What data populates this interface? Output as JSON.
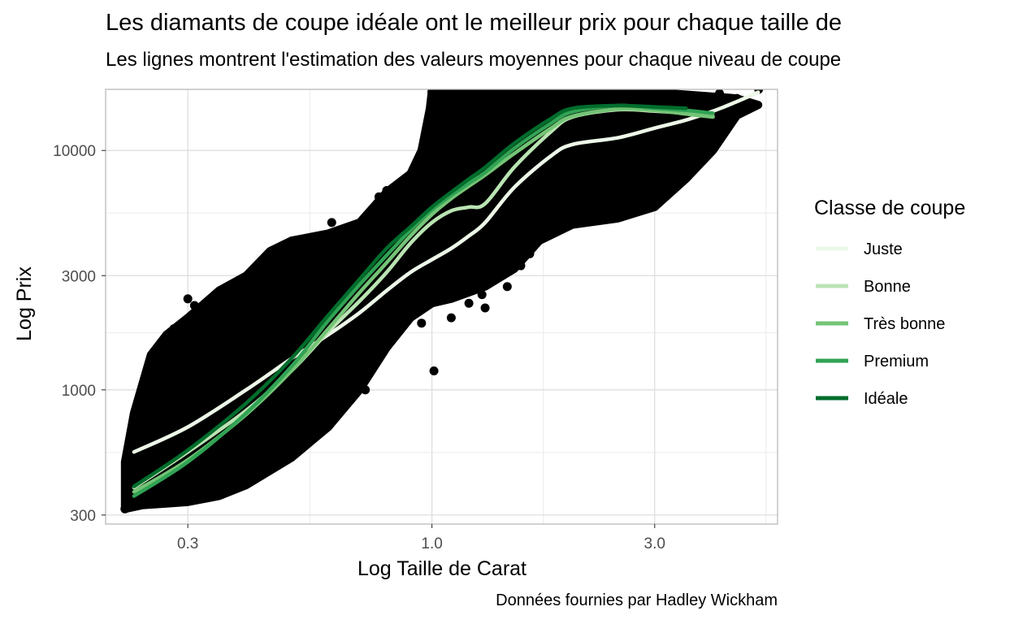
{
  "title": "Les diamants de coupe idéale ont le meilleur prix pour chaque taille de",
  "subtitle": "Les lignes montrent l'estimation des valeurs moyennes pour chaque niveau de coupe",
  "caption": "Données fournies par Hadley Wickham",
  "chart_data": {
    "type": "scatter",
    "xlabel": "Log Taille de Carat",
    "ylabel": "Log Prix",
    "x_scale": "log10",
    "y_scale": "log10",
    "xlim": [
      0.2,
      5.5
    ],
    "ylim": [
      275,
      18000
    ],
    "x_ticks": [
      0.3,
      1.0,
      3.0
    ],
    "x_tick_labels": [
      "0.3",
      "1.0",
      "3.0"
    ],
    "y_ticks": [
      300,
      1000,
      3000,
      10000
    ],
    "y_tick_labels": [
      "300",
      "1000",
      "3000",
      "10000"
    ],
    "grid": true,
    "legend_title": "Classe de coupe",
    "legend_position": "right",
    "points_color": "#000000",
    "scatter_outline": [
      [
        0.22,
        318
      ],
      [
        0.24,
        330
      ],
      [
        0.27,
        335
      ],
      [
        0.3,
        340
      ],
      [
        0.35,
        360
      ],
      [
        0.4,
        400
      ],
      [
        0.5,
        520
      ],
      [
        0.6,
        700
      ],
      [
        0.7,
        1000
      ],
      [
        0.8,
        1500
      ],
      [
        0.9,
        2000
      ],
      [
        1.0,
        2300
      ],
      [
        1.1,
        2400
      ],
      [
        1.3,
        2700
      ],
      [
        1.5,
        3200
      ],
      [
        1.7,
        4200
      ],
      [
        2.0,
        4900
      ],
      [
        2.5,
        5200
      ],
      [
        3.0,
        5800
      ],
      [
        3.5,
        7600
      ],
      [
        4.0,
        10000
      ],
      [
        4.5,
        14000
      ],
      [
        5.0,
        15500
      ],
      [
        4.5,
        16500
      ],
      [
        4.0,
        16800
      ],
      [
        3.0,
        17500
      ],
      [
        2.0,
        17800
      ],
      [
        1.5,
        17800
      ],
      [
        1.0,
        17800
      ],
      [
        0.99,
        15000
      ],
      [
        0.95,
        10000
      ],
      [
        0.9,
        8000
      ],
      [
        0.8,
        6700
      ],
      [
        0.7,
        5000
      ],
      [
        0.6,
        4500
      ],
      [
        0.5,
        4200
      ],
      [
        0.45,
        3800
      ],
      [
        0.4,
        3000
      ],
      [
        0.35,
        2600
      ],
      [
        0.3,
        2000
      ],
      [
        0.27,
        1700
      ],
      [
        0.25,
        1400
      ],
      [
        0.23,
        800
      ],
      [
        0.22,
        500
      ]
    ],
    "scatter_points": [
      {
        "x": 0.22,
        "y": 318
      },
      {
        "x": 0.23,
        "y": 350
      },
      {
        "x": 0.26,
        "y": 1000
      },
      {
        "x": 0.25,
        "y": 930
      },
      {
        "x": 0.3,
        "y": 2400
      },
      {
        "x": 0.31,
        "y": 2250
      },
      {
        "x": 0.35,
        "y": 2100
      },
      {
        "x": 0.41,
        "y": 3100
      },
      {
        "x": 0.43,
        "y": 3300
      },
      {
        "x": 0.46,
        "y": 3500
      },
      {
        "x": 0.48,
        "y": 2700
      },
      {
        "x": 0.61,
        "y": 5000
      },
      {
        "x": 0.77,
        "y": 6400
      },
      {
        "x": 0.8,
        "y": 6800
      },
      {
        "x": 0.82,
        "y": 6100
      },
      {
        "x": 0.92,
        "y": 7000
      },
      {
        "x": 0.94,
        "y": 8000
      },
      {
        "x": 0.75,
        "y": 5600
      },
      {
        "x": 0.52,
        "y": 1000
      },
      {
        "x": 0.57,
        "y": 1300
      },
      {
        "x": 0.62,
        "y": 1050
      },
      {
        "x": 0.68,
        "y": 1350
      },
      {
        "x": 0.72,
        "y": 1000
      },
      {
        "x": 0.76,
        "y": 1500
      },
      {
        "x": 0.85,
        "y": 1800
      },
      {
        "x": 0.95,
        "y": 1900
      },
      {
        "x": 1.01,
        "y": 1200
      },
      {
        "x": 1.1,
        "y": 2000
      },
      {
        "x": 1.2,
        "y": 2300
      },
      {
        "x": 1.28,
        "y": 2500
      },
      {
        "x": 1.45,
        "y": 2700
      },
      {
        "x": 1.55,
        "y": 3300
      },
      {
        "x": 1.62,
        "y": 3700
      },
      {
        "x": 1.75,
        "y": 4700
      },
      {
        "x": 1.9,
        "y": 5000
      },
      {
        "x": 2.05,
        "y": 5600
      },
      {
        "x": 2.2,
        "y": 5900
      },
      {
        "x": 2.3,
        "y": 6400
      },
      {
        "x": 2.5,
        "y": 7600
      },
      {
        "x": 2.75,
        "y": 10000
      },
      {
        "x": 2.95,
        "y": 6000
      },
      {
        "x": 3.01,
        "y": 8500
      },
      {
        "x": 3.0,
        "y": 9700
      },
      {
        "x": 3.02,
        "y": 11800
      },
      {
        "x": 3.1,
        "y": 10600
      },
      {
        "x": 3.35,
        "y": 16600
      },
      {
        "x": 3.5,
        "y": 15000
      },
      {
        "x": 3.65,
        "y": 16300
      },
      {
        "x": 4.01,
        "y": 15200
      },
      {
        "x": 4.13,
        "y": 17300
      },
      {
        "x": 4.5,
        "y": 16500
      },
      {
        "x": 5.01,
        "y": 18000
      },
      {
        "x": 1.0,
        "y": 17600
      },
      {
        "x": 1.5,
        "y": 17800
      },
      {
        "x": 2.0,
        "y": 17700
      },
      {
        "x": 0.35,
        "y": 2000
      },
      {
        "x": 0.28,
        "y": 1800
      },
      {
        "x": 0.9,
        "y": 4200
      },
      {
        "x": 1.05,
        "y": 3000
      },
      {
        "x": 1.3,
        "y": 2200
      }
    ],
    "series": [
      {
        "name": "Juste",
        "color": "#edf8e9",
        "x": [
          0.23,
          0.3,
          0.4,
          0.5,
          0.6,
          0.7,
          0.8,
          0.9,
          1.0,
          1.1,
          1.2,
          1.3,
          1.5,
          1.8,
          2.0,
          2.5,
          3.0,
          3.5,
          4.0,
          4.5,
          5.0
        ],
        "y": [
          550,
          700,
          1000,
          1350,
          1700,
          2100,
          2600,
          3100,
          3500,
          3900,
          4400,
          5000,
          7000,
          9500,
          10600,
          11300,
          12400,
          13400,
          14600,
          16000,
          17500
        ]
      },
      {
        "name": "Bonne",
        "color": "#bae4b3",
        "x": [
          0.23,
          0.3,
          0.4,
          0.5,
          0.6,
          0.7,
          0.8,
          0.9,
          1.0,
          1.1,
          1.2,
          1.3,
          1.5,
          1.8,
          2.0,
          2.5,
          3.0,
          3.5,
          4.0
        ],
        "y": [
          390,
          550,
          820,
          1200,
          1750,
          2350,
          3100,
          4100,
          5000,
          5600,
          5800,
          6000,
          8500,
          12000,
          13800,
          14800,
          14600,
          14300,
          13900
        ]
      },
      {
        "name": "Très bonne",
        "color": "#74c476",
        "x": [
          0.23,
          0.3,
          0.4,
          0.5,
          0.6,
          0.7,
          0.8,
          0.9,
          1.0,
          1.1,
          1.2,
          1.3,
          1.5,
          1.8,
          2.0,
          2.5,
          3.0,
          3.5,
          4.0
        ],
        "y": [
          375,
          510,
          790,
          1200,
          1800,
          2550,
          3400,
          4400,
          5400,
          6300,
          7100,
          7900,
          9700,
          12400,
          13900,
          14900,
          14700,
          14200,
          13800
        ]
      },
      {
        "name": "Premium",
        "color": "#31a354",
        "x": [
          0.23,
          0.3,
          0.4,
          0.5,
          0.6,
          0.7,
          0.8,
          0.9,
          1.0,
          1.1,
          1.2,
          1.3,
          1.5,
          1.8,
          2.0,
          2.5,
          3.0,
          3.5,
          4.0
        ],
        "y": [
          360,
          500,
          800,
          1250,
          1950,
          2750,
          3650,
          4650,
          5650,
          6500,
          7300,
          8100,
          10200,
          13000,
          14500,
          15400,
          15000,
          14700,
          14300
        ]
      },
      {
        "name": "Idéale",
        "color": "#006d2c",
        "x": [
          0.23,
          0.3,
          0.4,
          0.5,
          0.6,
          0.7,
          0.8,
          0.9,
          1.0,
          1.1,
          1.2,
          1.3,
          1.5,
          1.8,
          2.0,
          2.5,
          3.0,
          3.5
        ],
        "y": [
          395,
          560,
          880,
          1350,
          2050,
          2900,
          3900,
          4800,
          5800,
          6700,
          7600,
          8500,
          10700,
          13600,
          15000,
          15400,
          15200,
          15000
        ]
      }
    ]
  }
}
